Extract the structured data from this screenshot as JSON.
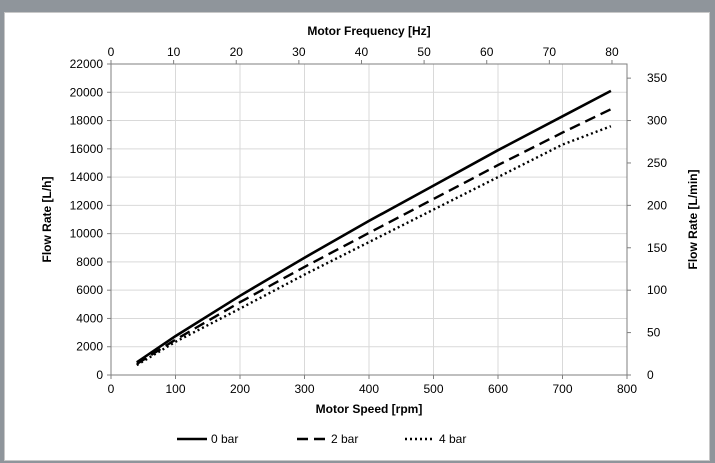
{
  "chart_data": {
    "type": "line",
    "x_bottom": {
      "label": "Motor Speed [rpm]",
      "range": [
        0,
        800
      ],
      "ticks": [
        0,
        100,
        200,
        300,
        400,
        500,
        600,
        700,
        800
      ]
    },
    "x_top": {
      "label": "Motor Frequency [Hz]",
      "range": [
        0,
        82.4
      ],
      "ticks": [
        0,
        10,
        20,
        30,
        40,
        50,
        60,
        70,
        80
      ]
    },
    "y_left": {
      "label": "Flow Rate [L/h]",
      "range": [
        0,
        22000
      ],
      "ticks": [
        0,
        2000,
        4000,
        6000,
        8000,
        10000,
        12000,
        14000,
        16000,
        18000,
        20000,
        22000
      ]
    },
    "y_right": {
      "label": "Flow Rate [L/min]",
      "range": [
        0,
        366.67
      ],
      "ticks": [
        0,
        50,
        100,
        150,
        200,
        250,
        300,
        350
      ]
    },
    "grid": true,
    "legend_position": "bottom",
    "series": [
      {
        "name": "0 bar",
        "style": "solid",
        "x": [
          40,
          100,
          200,
          300,
          400,
          500,
          600,
          700,
          775
        ],
        "y": [
          900,
          2750,
          5600,
          8300,
          10900,
          13400,
          15900,
          18300,
          20100
        ]
      },
      {
        "name": "2 bar",
        "style": "dashed",
        "x": [
          40,
          100,
          200,
          300,
          400,
          500,
          600,
          700,
          775
        ],
        "y": [
          780,
          2500,
          5150,
          7650,
          10050,
          12450,
          14850,
          17150,
          18800
        ]
      },
      {
        "name": "4 bar",
        "style": "dotted",
        "x": [
          40,
          100,
          200,
          300,
          400,
          500,
          600,
          700,
          775
        ],
        "y": [
          700,
          2350,
          4700,
          7100,
          9400,
          11700,
          14000,
          16300,
          17600
        ]
      }
    ]
  }
}
